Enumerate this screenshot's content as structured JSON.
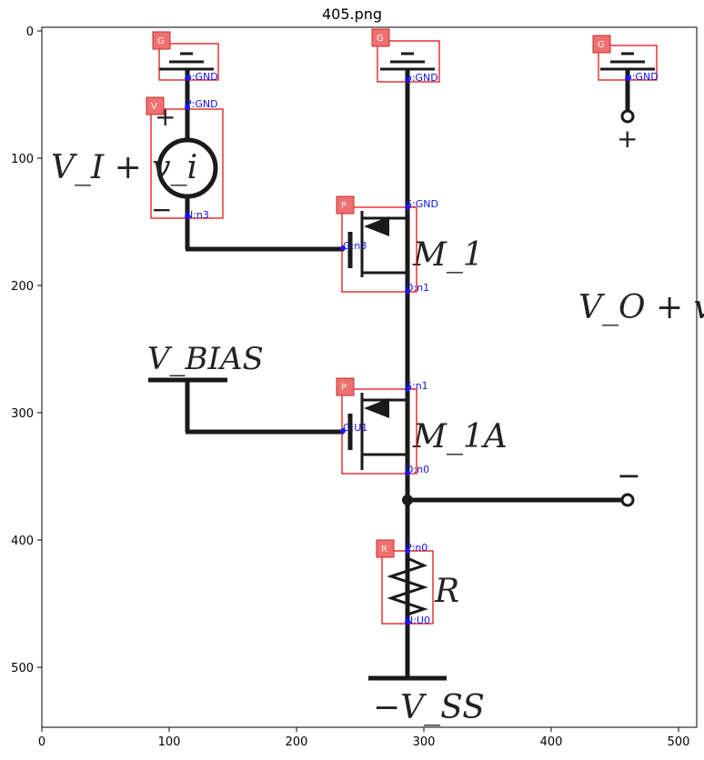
{
  "title": "405.png",
  "axes": {
    "x_ticks": [
      "0",
      "100",
      "200",
      "300",
      "400",
      "500"
    ],
    "y_ticks": [
      "0",
      "100",
      "200",
      "300",
      "400",
      "500"
    ]
  },
  "circuit_labels": {
    "vi": "V_I + v_i",
    "m1": "M_1",
    "m1a": "M_1A",
    "vbias": "V_BIAS",
    "vo": "V_O + v_o",
    "r": "R",
    "vss": "−V_SS",
    "plus": "+",
    "minus": "−"
  },
  "components": [
    {
      "tag": "G",
      "pins": [
        "o:GND"
      ]
    },
    {
      "tag": "G",
      "pins": [
        "o:GND"
      ]
    },
    {
      "tag": "G",
      "pins": [
        "o:GND"
      ]
    },
    {
      "tag": "V",
      "pins": [
        "P:GND",
        "N:n3"
      ]
    },
    {
      "tag": "P",
      "pins": [
        "S:GND",
        "G:n3",
        "D:n1"
      ]
    },
    {
      "tag": "P",
      "pins": [
        "S:n1",
        "G:U1",
        "D:n0"
      ]
    },
    {
      "tag": "R",
      "pins": [
        "P:n0",
        "N:U0"
      ]
    }
  ]
}
